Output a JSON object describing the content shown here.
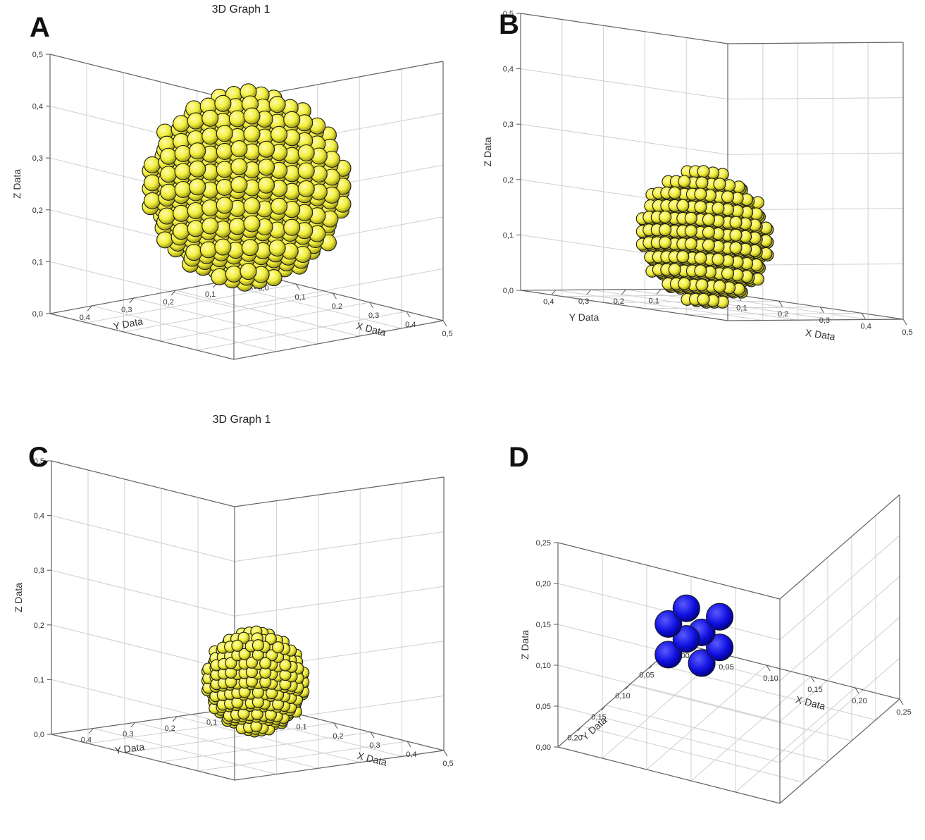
{
  "chart_data": [
    {
      "panel": "A",
      "type": "scatter3d",
      "title": "3D Graph 1",
      "xlabel": "X Data",
      "ylabel": "Y Data",
      "zlabel": "Z Data",
      "xlim": [
        0,
        0.5
      ],
      "ylim": [
        0,
        0.5
      ],
      "zlim": [
        0,
        0.5
      ],
      "z_ticks": [
        "0,0",
        "0,1",
        "0,2",
        "0,3",
        "0,4",
        "0,5"
      ],
      "x_ticks": [
        "0,0",
        "0,1",
        "0,2",
        "0,3",
        "0,4",
        "0,5"
      ],
      "y_ticks": [
        "0,0",
        "0,1",
        "0,2",
        "0,3",
        "0,4"
      ],
      "marker_color": "#f2ee3a",
      "cluster": {
        "center": [
          0.25,
          0.25,
          0.25
        ],
        "radius": 0.18
      }
    },
    {
      "panel": "B",
      "type": "scatter3d",
      "title": "",
      "xlabel": "X Data",
      "ylabel": "Y Data",
      "zlabel": "Z Data",
      "xlim": [
        0,
        0.5
      ],
      "ylim": [
        0,
        0.5
      ],
      "zlim": [
        0,
        0.5
      ],
      "z_ticks": [
        "0,0",
        "0,1",
        "0,2",
        "0,3",
        "0,4",
        "0,5"
      ],
      "x_ticks": [
        "0,0",
        "0,1",
        "0,2",
        "0,3",
        "0,4",
        "0,5"
      ],
      "y_ticks": [
        "0,0",
        "0,1",
        "0,2",
        "0,3",
        "0,4"
      ],
      "marker_color": "#f2ee3a",
      "cluster": {
        "center": [
          0.14,
          0.14,
          0.11
        ],
        "radius": 0.12
      }
    },
    {
      "panel": "C",
      "type": "scatter3d",
      "title": "3D Graph 1",
      "xlabel": "X Data",
      "ylabel": "Y Data",
      "zlabel": "Z Data",
      "xlim": [
        0,
        0.5
      ],
      "ylim": [
        0,
        0.5
      ],
      "zlim": [
        0,
        0.5
      ],
      "z_ticks": [
        "0,0",
        "0,1",
        "0,2",
        "0,3",
        "0,4",
        "0,5"
      ],
      "x_ticks": [
        "0,0",
        "0,1",
        "0,2",
        "0,3",
        "0,4",
        "0,5"
      ],
      "y_ticks": [
        "0,0",
        "0,1",
        "0,2",
        "0,3",
        "0,4"
      ],
      "marker_color": "#f2ee3a",
      "cluster": {
        "center": [
          0.1,
          0.1,
          0.07
        ],
        "radius": 0.09
      }
    },
    {
      "panel": "D",
      "type": "scatter3d",
      "title": "",
      "xlabel": "X Data",
      "ylabel": "Y Data",
      "zlabel": "Z Data",
      "xlim": [
        0,
        0.25
      ],
      "ylim": [
        0,
        0.25
      ],
      "zlim": [
        0,
        0.25
      ],
      "z_ticks": [
        "0,00",
        "0,05",
        "0,10",
        "0,15",
        "0,20",
        "0,25"
      ],
      "x_ticks": [
        "0,00",
        "0,05",
        "0,10",
        "0,15",
        "0,20",
        "0,25"
      ],
      "y_ticks": [
        "0,00",
        "0,05",
        "0,10",
        "0,15",
        "0,20"
      ],
      "marker_color": "#1010e0",
      "cluster": {
        "center": [
          0.04,
          0.04,
          0.04
        ],
        "radius": 0.025
      }
    }
  ]
}
